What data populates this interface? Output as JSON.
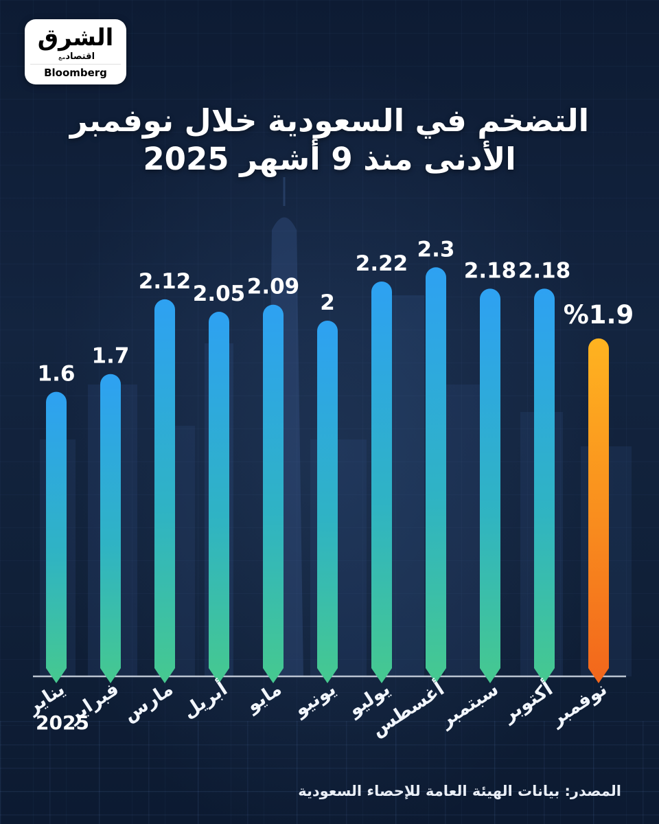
{
  "logo": {
    "brand_ar": "الشرق",
    "sub_ar": "اقتصاد",
    "with_ar": "مع",
    "partner": "Bloomberg"
  },
  "title": {
    "line1": "التضخم في السعودية خلال نوفمبر",
    "line2": "2025 الأدنى منذ 9 أشهر"
  },
  "chart_data": {
    "type": "bar",
    "title": "التضخم في السعودية خلال نوفمبر 2025 الأدنى منذ 9 أشهر",
    "categories": [
      "يناير",
      "فبراير",
      "مارس",
      "أبريل",
      "مايو",
      "يونيو",
      "يوليو",
      "أغسطس",
      "سبتمبر",
      "أكتوبر",
      "نوفمبر"
    ],
    "values": [
      1.6,
      1.7,
      2.12,
      2.05,
      2.09,
      2,
      2.22,
      2.3,
      2.18,
      2.18,
      1.9
    ],
    "value_labels": [
      "1.6",
      "1.7",
      "2.12",
      "2.05",
      "2.09",
      "2",
      "2.22",
      "2.3",
      "2.18",
      "2.18",
      "%1.9"
    ],
    "highlight_index": 10,
    "year_label": "2025",
    "xlabel": "",
    "ylabel": "",
    "ylim": [
      0,
      2.5
    ],
    "legend": false,
    "grid": false,
    "colors": {
      "bar_top": "#2ea1f2",
      "bar_mid": "#2fb3c4",
      "bar_bottom": "#46c98f",
      "highlight_top": "#ffb320",
      "highlight_mid": "#f98f1e",
      "highlight_bottom": "#f2661c",
      "value_label": "#ffffff",
      "highlight_label": "#f6a21c",
      "baseline": "#cdd6e2"
    }
  },
  "source": "المصدر: بيانات الهيئة العامة للإحصاء السعودية"
}
